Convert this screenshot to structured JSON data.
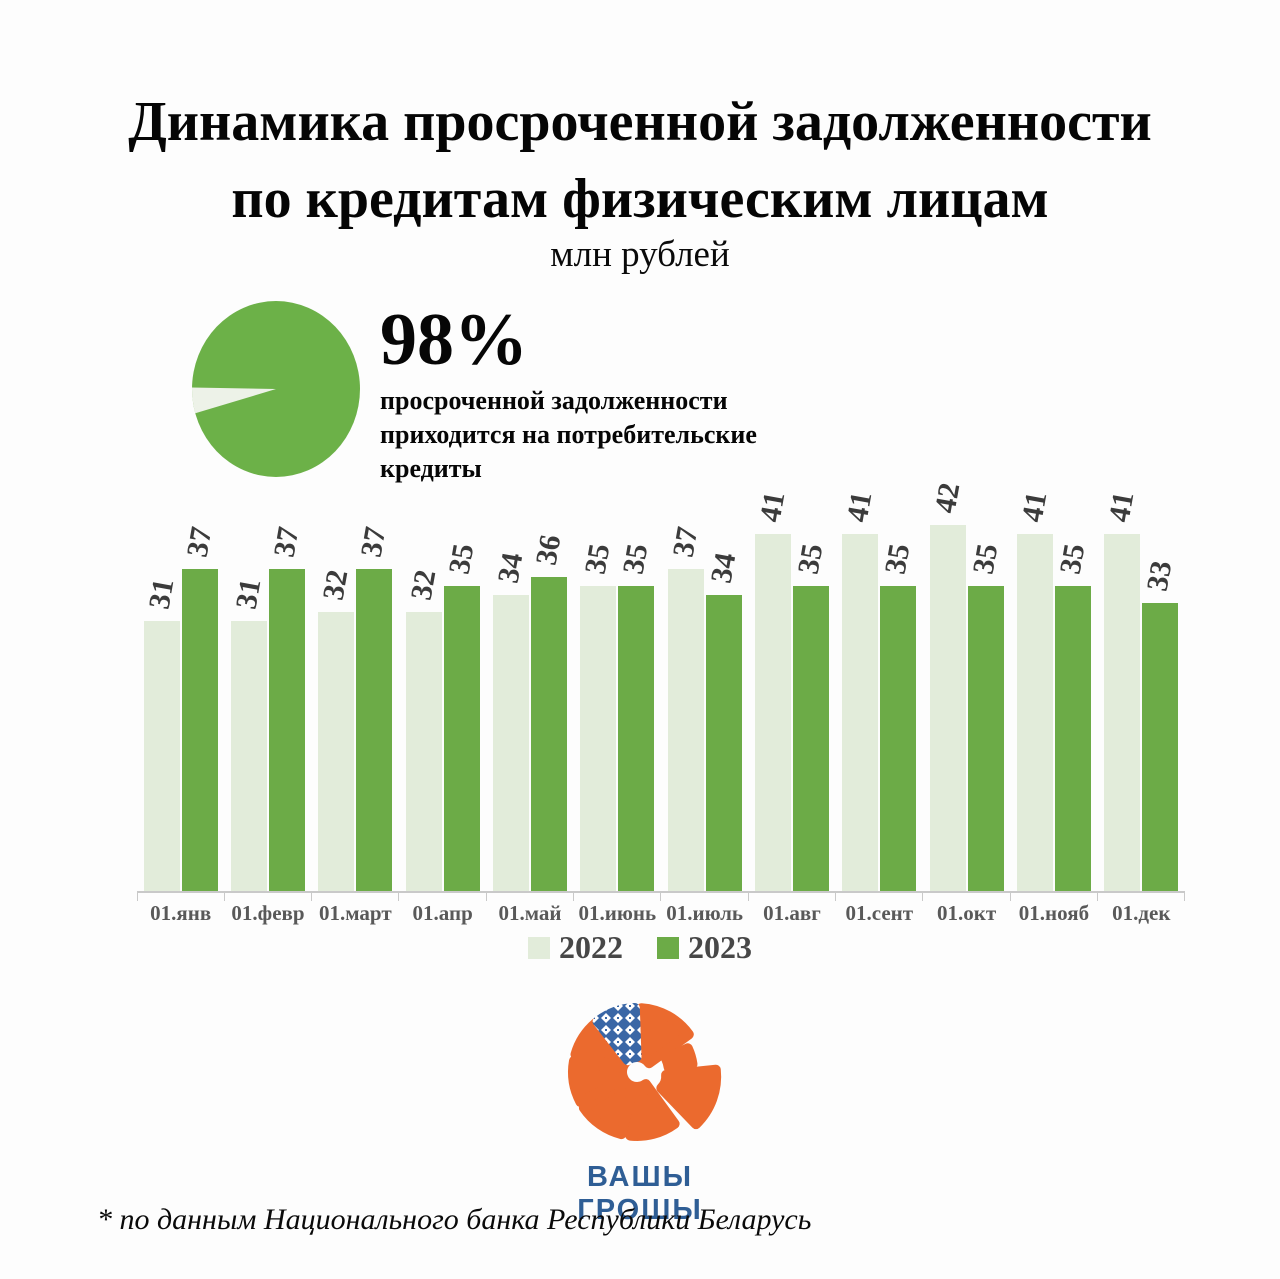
{
  "title": {
    "line1": "Динамика просроченной задолженности",
    "line2": "по кредитам физическим лицам",
    "subtitle": "млн рублей"
  },
  "highlight": {
    "percent_label": "98%",
    "description": "просроченной задолженности приходится на потребительские кредиты",
    "pie": {
      "type": "pie",
      "values": [
        98,
        2
      ],
      "main_color": "#6CB148",
      "slice_color": "#EDF2E8"
    }
  },
  "chart_data": {
    "type": "bar",
    "title": "Динамика просроченной задолженности по кредитам физическим лицам",
    "units": "млн рублей",
    "categories": [
      "01.янв",
      "01.февр",
      "01.март",
      "01.апр",
      "01.май",
      "01.июнь",
      "01.июль",
      "01.авг",
      "01.сент",
      "01.окт",
      "01.нояб",
      "01.дек"
    ],
    "series": [
      {
        "name": "2022",
        "color": "#E2ECDA",
        "values": [
          31,
          31,
          32,
          32,
          34,
          35,
          37,
          41,
          41,
          42,
          41,
          41
        ]
      },
      {
        "name": "2023",
        "color": "#6CAB47",
        "values": [
          37,
          37,
          37,
          35,
          36,
          35,
          34,
          35,
          35,
          35,
          35,
          33
        ]
      }
    ],
    "ylim": [
      0,
      42
    ],
    "grid": false,
    "legend_position": "bottom",
    "data_labels": "rotated"
  },
  "logo": {
    "text": "ВАШЫ ГРОШЫ",
    "orange": "#EB6A2E",
    "blue": "#3A67A6",
    "text_color": "#2F5E95"
  },
  "footnote": "* по данным Национального банка Республики Беларусь"
}
